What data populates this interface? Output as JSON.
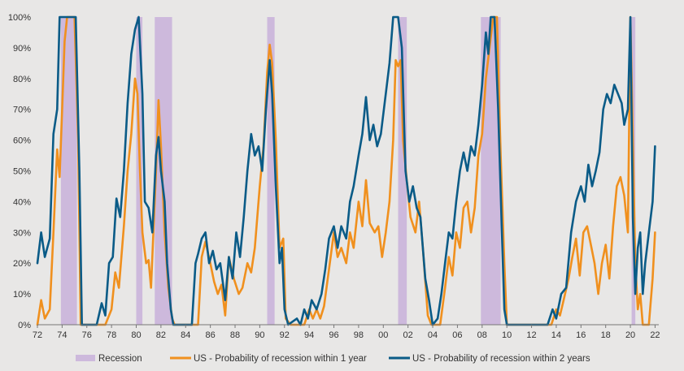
{
  "chart_data": {
    "type": "line",
    "title": "",
    "xlabel": "",
    "ylabel": "",
    "xlim": [
      1972,
      2022.3
    ],
    "ylim": [
      0,
      100
    ],
    "y_ticks": [
      0,
      10,
      20,
      30,
      40,
      50,
      60,
      70,
      80,
      90,
      100
    ],
    "y_tick_labels": [
      "0%",
      "10%",
      "20%",
      "30%",
      "40%",
      "50%",
      "60%",
      "70%",
      "80%",
      "90%",
      "100%"
    ],
    "x_ticks": [
      1972,
      1974,
      1976,
      1978,
      1980,
      1982,
      1984,
      1986,
      1988,
      1990,
      1992,
      1994,
      1996,
      1998,
      2000,
      2002,
      2004,
      2006,
      2008,
      2010,
      2012,
      2014,
      2016,
      2018,
      2020,
      2022
    ],
    "x_tick_labels": [
      "72",
      "74",
      "76",
      "78",
      "80",
      "82",
      "84",
      "86",
      "88",
      "90",
      "92",
      "94",
      "96",
      "98",
      "00",
      "02",
      "04",
      "06",
      "08",
      "10",
      "12",
      "14",
      "16",
      "18",
      "20",
      "22"
    ],
    "grid": false,
    "legend_position": "bottom",
    "recessions": [
      {
        "start": 1973.9,
        "end": 1975.2
      },
      {
        "start": 1980.0,
        "end": 1980.5
      },
      {
        "start": 1981.5,
        "end": 1982.9
      },
      {
        "start": 1990.6,
        "end": 1991.2
      },
      {
        "start": 2001.2,
        "end": 2001.9
      },
      {
        "start": 2007.9,
        "end": 2009.5
      },
      {
        "start": 2020.1,
        "end": 2020.4
      }
    ],
    "legend": {
      "recession_label": "Recession",
      "series_1y_label": "US - Probability of recession within 1 year",
      "series_2y_label": "US - Probability of recession within 2 years"
    },
    "series": [
      {
        "name": "US - Probability of recession within 1 year",
        "color": "#f0901e",
        "points": [
          [
            1972.0,
            0
          ],
          [
            1972.3,
            8
          ],
          [
            1972.6,
            2
          ],
          [
            1973.0,
            5
          ],
          [
            1973.3,
            30
          ],
          [
            1973.6,
            57
          ],
          [
            1973.8,
            48
          ],
          [
            1974.0,
            70
          ],
          [
            1974.2,
            92
          ],
          [
            1974.4,
            100
          ],
          [
            1975.0,
            100
          ],
          [
            1975.3,
            60
          ],
          [
            1975.5,
            0
          ],
          [
            1977.5,
            0
          ],
          [
            1978.0,
            5
          ],
          [
            1978.3,
            17
          ],
          [
            1978.6,
            12
          ],
          [
            1979.0,
            32
          ],
          [
            1979.3,
            50
          ],
          [
            1979.6,
            62
          ],
          [
            1979.9,
            80
          ],
          [
            1980.1,
            75
          ],
          [
            1980.3,
            50
          ],
          [
            1980.5,
            30
          ],
          [
            1980.8,
            20
          ],
          [
            1981.0,
            21
          ],
          [
            1981.2,
            12
          ],
          [
            1981.6,
            50
          ],
          [
            1981.8,
            73
          ],
          [
            1982.0,
            58
          ],
          [
            1982.3,
            30
          ],
          [
            1982.6,
            12
          ],
          [
            1982.9,
            2
          ],
          [
            1983.1,
            0
          ],
          [
            1985.0,
            0
          ],
          [
            1985.3,
            22
          ],
          [
            1985.6,
            27
          ],
          [
            1986.0,
            20
          ],
          [
            1986.3,
            14
          ],
          [
            1986.6,
            10
          ],
          [
            1986.9,
            13
          ],
          [
            1987.2,
            3
          ],
          [
            1987.5,
            22
          ],
          [
            1987.9,
            15
          ],
          [
            1988.3,
            10
          ],
          [
            1988.6,
            12
          ],
          [
            1989.0,
            20
          ],
          [
            1989.3,
            17
          ],
          [
            1989.6,
            25
          ],
          [
            1990.0,
            45
          ],
          [
            1990.3,
            58
          ],
          [
            1990.6,
            82
          ],
          [
            1990.8,
            91
          ],
          [
            1991.0,
            85
          ],
          [
            1991.3,
            60
          ],
          [
            1991.6,
            25
          ],
          [
            1991.9,
            28
          ],
          [
            1992.1,
            2
          ],
          [
            1992.5,
            0
          ],
          [
            1993.6,
            0
          ],
          [
            1994.0,
            5
          ],
          [
            1994.3,
            2
          ],
          [
            1994.6,
            5
          ],
          [
            1994.9,
            2
          ],
          [
            1995.2,
            6
          ],
          [
            1995.6,
            18
          ],
          [
            1996.0,
            30
          ],
          [
            1996.3,
            22
          ],
          [
            1996.6,
            25
          ],
          [
            1997.0,
            20
          ],
          [
            1997.3,
            30
          ],
          [
            1997.6,
            25
          ],
          [
            1998.0,
            40
          ],
          [
            1998.3,
            32
          ],
          [
            1998.6,
            47
          ],
          [
            1998.9,
            33
          ],
          [
            1999.3,
            30
          ],
          [
            1999.6,
            32
          ],
          [
            1999.9,
            22
          ],
          [
            2000.2,
            30
          ],
          [
            2000.5,
            40
          ],
          [
            2000.8,
            60
          ],
          [
            2001.0,
            86
          ],
          [
            2001.2,
            84
          ],
          [
            2001.4,
            86
          ],
          [
            2001.6,
            60
          ],
          [
            2001.9,
            47
          ],
          [
            2002.2,
            35
          ],
          [
            2002.6,
            30
          ],
          [
            2002.9,
            40
          ],
          [
            2003.2,
            25
          ],
          [
            2003.6,
            3
          ],
          [
            2003.9,
            0
          ],
          [
            2004.6,
            0
          ],
          [
            2005.0,
            12
          ],
          [
            2005.3,
            22
          ],
          [
            2005.6,
            16
          ],
          [
            2005.9,
            30
          ],
          [
            2006.2,
            25
          ],
          [
            2006.5,
            38
          ],
          [
            2006.8,
            40
          ],
          [
            2007.1,
            30
          ],
          [
            2007.4,
            38
          ],
          [
            2007.7,
            55
          ],
          [
            2008.0,
            62
          ],
          [
            2008.3,
            80
          ],
          [
            2008.6,
            90
          ],
          [
            2008.9,
            100
          ],
          [
            2009.2,
            100
          ],
          [
            2009.5,
            55
          ],
          [
            2009.8,
            20
          ],
          [
            2010.0,
            0
          ],
          [
            2013.6,
            0
          ],
          [
            2014.0,
            5
          ],
          [
            2014.3,
            3
          ],
          [
            2014.6,
            8
          ],
          [
            2015.0,
            15
          ],
          [
            2015.3,
            22
          ],
          [
            2015.6,
            28
          ],
          [
            2015.9,
            16
          ],
          [
            2016.2,
            30
          ],
          [
            2016.5,
            32
          ],
          [
            2016.8,
            26
          ],
          [
            2017.1,
            20
          ],
          [
            2017.4,
            10
          ],
          [
            2017.7,
            20
          ],
          [
            2018.0,
            26
          ],
          [
            2018.3,
            15
          ],
          [
            2018.6,
            32
          ],
          [
            2018.9,
            45
          ],
          [
            2019.2,
            48
          ],
          [
            2019.5,
            42
          ],
          [
            2019.8,
            30
          ],
          [
            2020.0,
            100
          ],
          [
            2020.2,
            60
          ],
          [
            2020.4,
            20
          ],
          [
            2020.6,
            5
          ],
          [
            2020.8,
            10
          ],
          [
            2021.0,
            0
          ],
          [
            2021.5,
            0
          ],
          [
            2021.8,
            15
          ],
          [
            2022.0,
            30
          ]
        ]
      },
      {
        "name": "US - Probability of recession within 2 years",
        "color": "#0a5b87",
        "points": [
          [
            1972.0,
            20
          ],
          [
            1972.3,
            30
          ],
          [
            1972.6,
            22
          ],
          [
            1973.0,
            28
          ],
          [
            1973.3,
            62
          ],
          [
            1973.6,
            70
          ],
          [
            1973.8,
            100
          ],
          [
            1975.1,
            100
          ],
          [
            1975.4,
            50
          ],
          [
            1975.6,
            0
          ],
          [
            1976.8,
            0
          ],
          [
            1977.2,
            7
          ],
          [
            1977.5,
            3
          ],
          [
            1977.8,
            20
          ],
          [
            1978.1,
            22
          ],
          [
            1978.4,
            41
          ],
          [
            1978.7,
            35
          ],
          [
            1979.0,
            50
          ],
          [
            1979.3,
            72
          ],
          [
            1979.6,
            88
          ],
          [
            1979.9,
            96
          ],
          [
            1980.2,
            100
          ],
          [
            1980.5,
            75
          ],
          [
            1980.7,
            40
          ],
          [
            1981.0,
            38
          ],
          [
            1981.3,
            30
          ],
          [
            1981.6,
            55
          ],
          [
            1981.8,
            61
          ],
          [
            1982.0,
            50
          ],
          [
            1982.3,
            40
          ],
          [
            1982.5,
            20
          ],
          [
            1982.8,
            5
          ],
          [
            1983.0,
            0
          ],
          [
            1984.5,
            0
          ],
          [
            1984.8,
            20
          ],
          [
            1985.0,
            23
          ],
          [
            1985.3,
            28
          ],
          [
            1985.6,
            30
          ],
          [
            1985.9,
            20
          ],
          [
            1986.2,
            24
          ],
          [
            1986.5,
            18
          ],
          [
            1986.8,
            20
          ],
          [
            1987.2,
            8
          ],
          [
            1987.5,
            22
          ],
          [
            1987.8,
            15
          ],
          [
            1988.1,
            30
          ],
          [
            1988.4,
            22
          ],
          [
            1988.7,
            35
          ],
          [
            1989.0,
            50
          ],
          [
            1989.3,
            62
          ],
          [
            1989.6,
            55
          ],
          [
            1989.9,
            58
          ],
          [
            1990.2,
            50
          ],
          [
            1990.5,
            70
          ],
          [
            1990.8,
            86
          ],
          [
            1991.0,
            75
          ],
          [
            1991.3,
            45
          ],
          [
            1991.6,
            20
          ],
          [
            1991.8,
            25
          ],
          [
            1992.0,
            5
          ],
          [
            1992.3,
            0
          ],
          [
            1993.0,
            2
          ],
          [
            1993.3,
            0
          ],
          [
            1993.6,
            5
          ],
          [
            1993.9,
            2
          ],
          [
            1994.2,
            8
          ],
          [
            1994.6,
            5
          ],
          [
            1995.0,
            10
          ],
          [
            1995.3,
            18
          ],
          [
            1995.6,
            28
          ],
          [
            1996.0,
            32
          ],
          [
            1996.3,
            25
          ],
          [
            1996.6,
            32
          ],
          [
            1997.0,
            28
          ],
          [
            1997.3,
            40
          ],
          [
            1997.6,
            45
          ],
          [
            1998.0,
            55
          ],
          [
            1998.3,
            62
          ],
          [
            1998.6,
            74
          ],
          [
            1998.9,
            60
          ],
          [
            1999.2,
            65
          ],
          [
            1999.5,
            58
          ],
          [
            1999.8,
            62
          ],
          [
            2000.2,
            75
          ],
          [
            2000.5,
            85
          ],
          [
            2000.8,
            100
          ],
          [
            2001.2,
            100
          ],
          [
            2001.5,
            90
          ],
          [
            2001.8,
            50
          ],
          [
            2002.1,
            40
          ],
          [
            2002.4,
            45
          ],
          [
            2002.7,
            38
          ],
          [
            2003.0,
            35
          ],
          [
            2003.4,
            15
          ],
          [
            2003.7,
            8
          ],
          [
            2004.0,
            0
          ],
          [
            2004.4,
            2
          ],
          [
            2004.7,
            10
          ],
          [
            2005.0,
            20
          ],
          [
            2005.3,
            30
          ],
          [
            2005.6,
            28
          ],
          [
            2005.9,
            40
          ],
          [
            2006.2,
            50
          ],
          [
            2006.5,
            56
          ],
          [
            2006.8,
            50
          ],
          [
            2007.1,
            58
          ],
          [
            2007.4,
            55
          ],
          [
            2007.7,
            65
          ],
          [
            2008.0,
            78
          ],
          [
            2008.3,
            95
          ],
          [
            2008.5,
            88
          ],
          [
            2008.7,
            100
          ],
          [
            2009.0,
            100
          ],
          [
            2009.3,
            70
          ],
          [
            2009.6,
            30
          ],
          [
            2009.8,
            5
          ],
          [
            2010.0,
            0
          ],
          [
            2013.3,
            0
          ],
          [
            2013.7,
            5
          ],
          [
            2014.0,
            2
          ],
          [
            2014.4,
            10
          ],
          [
            2014.8,
            12
          ],
          [
            2015.2,
            30
          ],
          [
            2015.6,
            40
          ],
          [
            2016.0,
            45
          ],
          [
            2016.3,
            40
          ],
          [
            2016.6,
            52
          ],
          [
            2016.9,
            45
          ],
          [
            2017.2,
            50
          ],
          [
            2017.5,
            56
          ],
          [
            2017.8,
            70
          ],
          [
            2018.1,
            75
          ],
          [
            2018.4,
            72
          ],
          [
            2018.7,
            78
          ],
          [
            2019.0,
            75
          ],
          [
            2019.3,
            72
          ],
          [
            2019.5,
            65
          ],
          [
            2019.8,
            70
          ],
          [
            2020.0,
            100
          ],
          [
            2020.2,
            35
          ],
          [
            2020.4,
            10
          ],
          [
            2020.6,
            25
          ],
          [
            2020.8,
            30
          ],
          [
            2021.0,
            10
          ],
          [
            2021.2,
            20
          ],
          [
            2021.5,
            30
          ],
          [
            2021.8,
            40
          ],
          [
            2022.0,
            58
          ]
        ]
      }
    ]
  }
}
